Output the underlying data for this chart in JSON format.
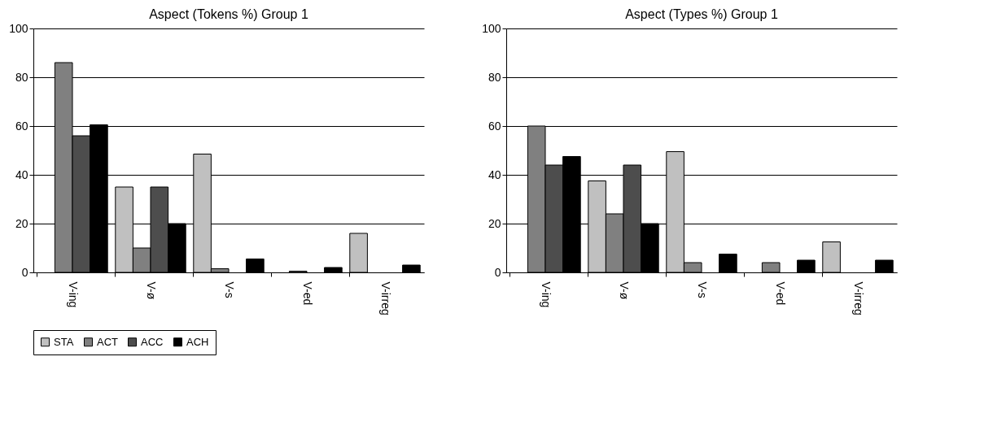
{
  "chart_data": [
    {
      "type": "bar",
      "title": "Aspect (Tokens %) Group 1",
      "categories": [
        "V-ing",
        "V-ø",
        "V-s",
        "V-ed",
        "V-irreg"
      ],
      "series": [
        {
          "name": "STA",
          "color": "#c0c0c0",
          "values": [
            null,
            35,
            48.5,
            null,
            16
          ]
        },
        {
          "name": "ACT",
          "color": "#808080",
          "values": [
            86,
            10,
            1.5,
            0.5,
            null
          ]
        },
        {
          "name": "ACC",
          "color": "#4d4d4d",
          "values": [
            56,
            35,
            null,
            null,
            null
          ]
        },
        {
          "name": "ACH",
          "color": "#000000",
          "values": [
            60.5,
            20,
            5.5,
            2,
            3
          ]
        }
      ],
      "ylim": [
        0,
        100
      ],
      "yticks": [
        0,
        20,
        40,
        60,
        80,
        100
      ],
      "grid": "y",
      "legend": "bottom"
    },
    {
      "type": "bar",
      "title": "Aspect (Types %) Group 1",
      "categories": [
        "V-ing",
        "V-ø",
        "V-s",
        "V-ed",
        "V-irreg"
      ],
      "series": [
        {
          "name": "STA",
          "color": "#c0c0c0",
          "values": [
            null,
            37.5,
            49.5,
            null,
            12.5
          ]
        },
        {
          "name": "ACT",
          "color": "#808080",
          "values": [
            60,
            24,
            4,
            4,
            null
          ]
        },
        {
          "name": "ACC",
          "color": "#4d4d4d",
          "values": [
            44,
            44,
            null,
            null,
            null
          ]
        },
        {
          "name": "ACH",
          "color": "#000000",
          "values": [
            47.5,
            20,
            7.5,
            5,
            5
          ]
        }
      ],
      "ylim": [
        0,
        100
      ],
      "yticks": [
        0,
        20,
        40,
        60,
        80,
        100
      ],
      "grid": "y",
      "legend": "bottom"
    }
  ]
}
